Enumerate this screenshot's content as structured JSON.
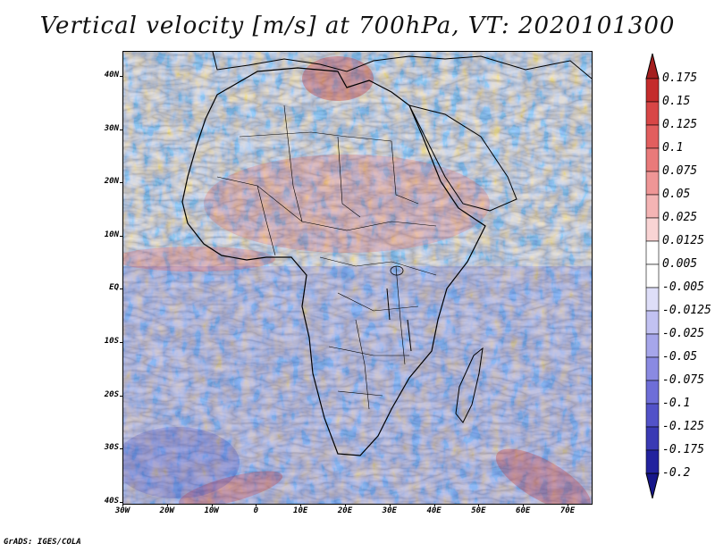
{
  "title": "Vertical velocity [m/s] at 700hPa, VT: 2020101300",
  "credit": "GrADS: IGES/COLA",
  "y_axis": {
    "labels": [
      "40N",
      "30N",
      "20N",
      "10N",
      "EQ",
      "10S",
      "20S",
      "30S",
      "40S"
    ]
  },
  "x_axis": {
    "labels": [
      "30W",
      "20W",
      "10W",
      "0",
      "10E",
      "20E",
      "30E",
      "40E",
      "50E",
      "60E",
      "70E"
    ]
  },
  "colorbar": {
    "labels": [
      "0.175",
      "0.15",
      "0.125",
      "0.1",
      "0.075",
      "0.05",
      "0.025",
      "0.0125",
      "0.005",
      "-0.005",
      "-0.0125",
      "-0.025",
      "-0.05",
      "-0.075",
      "-0.1",
      "-0.125",
      "-0.175",
      "-0.2"
    ],
    "colors": [
      "#a41e1e",
      "#c42c2c",
      "#d84646",
      "#e25e5e",
      "#e97a7a",
      "#ef9696",
      "#f4b4b4",
      "#f9d4d4",
      "#ffffff",
      "#ffffff",
      "#dedef8",
      "#c2c2f2",
      "#a6a6ea",
      "#8a8ae2",
      "#6e6ed8",
      "#5252c8",
      "#3a3ab4",
      "#22229e",
      "#16168a"
    ]
  },
  "colors": {
    "sinking": "#5a5ae0",
    "rising": "#e04848",
    "neutral": "#ffffff",
    "coast": "#000000"
  }
}
